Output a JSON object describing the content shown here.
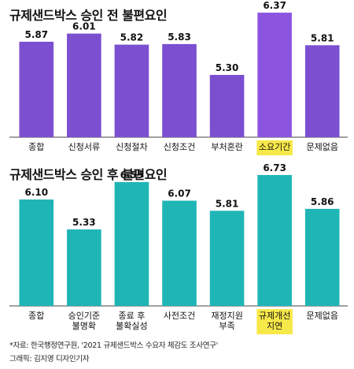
{
  "chart_data": [
    {
      "type": "bar",
      "title": "규제샌드박스 승인 전 불편요인",
      "categories": [
        "종합",
        "신청서류",
        "신청절차",
        "신청조건",
        "부처혼란",
        "소요기간",
        "문제없음"
      ],
      "values": [
        5.87,
        6.01,
        5.82,
        5.83,
        5.3,
        6.37,
        5.81
      ],
      "value_labels": [
        "5.87",
        "6.01",
        "5.82",
        "5.83",
        "5.30",
        "6.37",
        "5.81"
      ],
      "highlight_index": 5,
      "bar_color": "#7b4fd0",
      "highlight_bar_color": "#8c55e0",
      "highlight_label_bg": "#f7e84a"
    },
    {
      "type": "bar",
      "title": "규제샌드박스 승인 후 불편요인",
      "categories": [
        [
          "종합"
        ],
        [
          "승인기준",
          "불명확"
        ],
        [
          "종료 후",
          "불확실성"
        ],
        [
          "사전조건"
        ],
        [
          "재정지원",
          "부족"
        ],
        [
          "규제개선",
          "지연"
        ],
        [
          "문제없음"
        ]
      ],
      "values": [
        6.1,
        5.33,
        6.55,
        6.07,
        5.81,
        6.73,
        5.86
      ],
      "value_labels": [
        "6.10",
        "5.33",
        "6.55",
        "6.07",
        "5.81",
        "6.73",
        "5.86"
      ],
      "highlight_index": 5,
      "bar_color": "#1fb5b5",
      "highlight_bar_color": "#1fb5b5",
      "highlight_label_bg": "#f7e84a"
    }
  ],
  "footer": {
    "source": "*자료: 한국행정연구원, '2021 규제샌드박스 수요자 체감도 조사연구'",
    "credit": "그래픽: 김지영 디자인기자"
  }
}
